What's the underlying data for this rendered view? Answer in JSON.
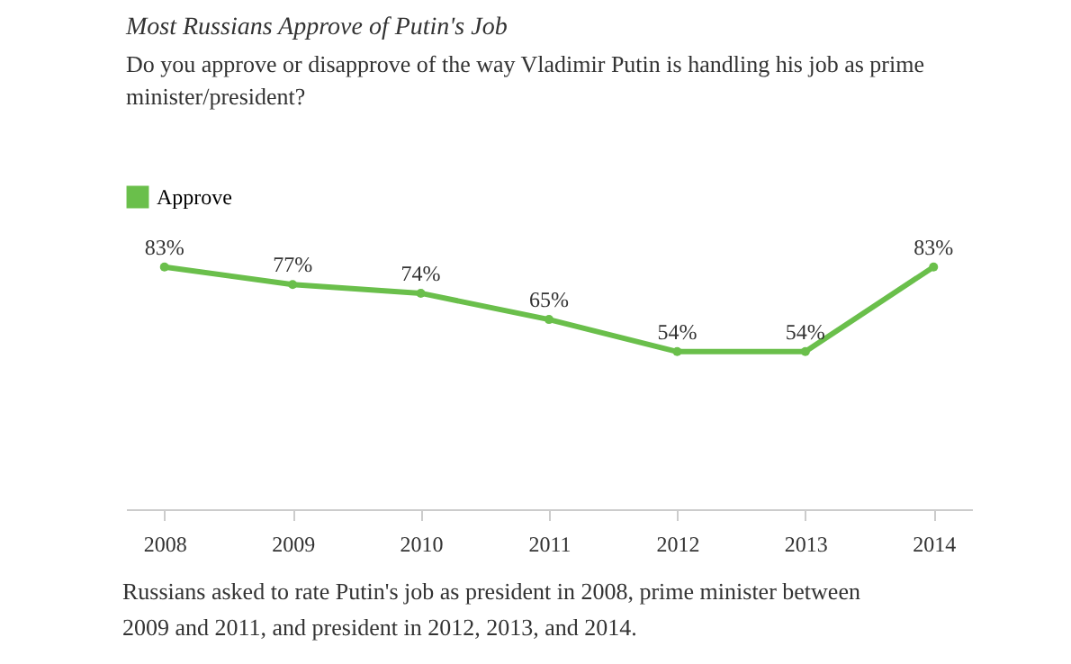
{
  "chart_data": {
    "type": "line",
    "title": "Most Russians Approve of Putin's Job",
    "subtitle": "Do you approve or disapprove of the way Vladimir Putin is handling his job as prime minister/president?",
    "categories": [
      "2008",
      "2009",
      "2010",
      "2011",
      "2012",
      "2013",
      "2014"
    ],
    "series": [
      {
        "name": "Approve",
        "color": "#6abf4b",
        "values": [
          83,
          77,
          74,
          65,
          54,
          54,
          83
        ],
        "value_labels": [
          "83%",
          "77%",
          "74%",
          "65%",
          "54%",
          "54%",
          "83%"
        ]
      }
    ],
    "tick_labels": "x",
    "marker": "circle",
    "line_style": "solid",
    "grid": false,
    "legend": "top left",
    "annotations": [
      "Russians asked to rate Putin's job as president in 2008, prime minister between 2009 and 2011, and president in 2012, 2013, and 2014."
    ]
  }
}
